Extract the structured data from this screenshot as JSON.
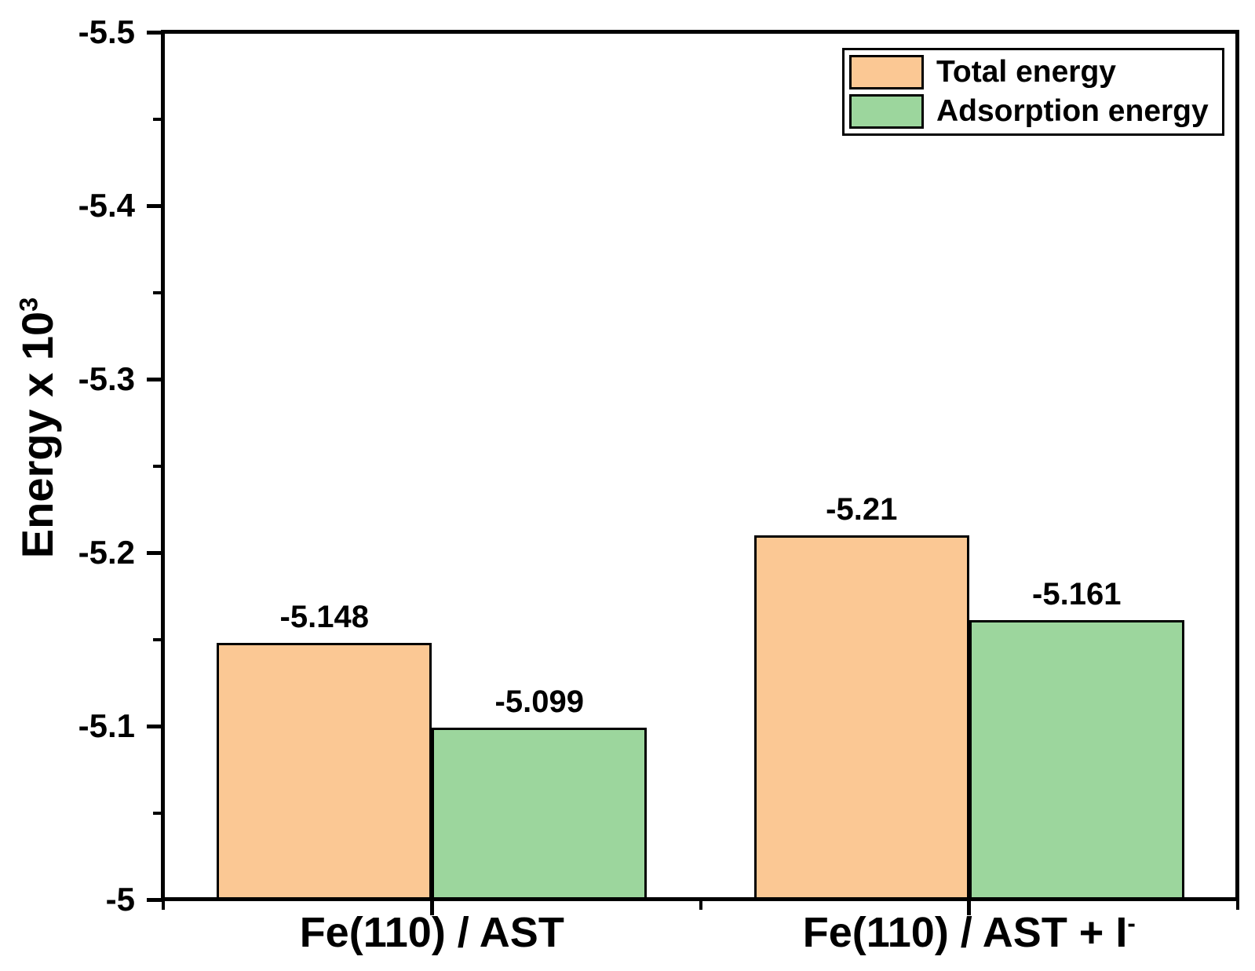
{
  "chart_data": {
    "type": "bar",
    "title": "",
    "xlabel": "",
    "ylabel": {
      "text": "Energy x 10",
      "sup": "3"
    },
    "yaxis": {
      "top_value": -5.5,
      "bottom_value": -5.0,
      "major_tick_labels": [
        "-5.5",
        "-5.4",
        "-5.3",
        "-5.2",
        "-5.1",
        "-5"
      ],
      "major_tick_values": [
        -5.5,
        -5.4,
        -5.3,
        -5.2,
        -5.1,
        -5.0
      ],
      "minor_tick_values": [
        -5.45,
        -5.35,
        -5.25,
        -5.15,
        -5.05
      ]
    },
    "categories": [
      {
        "text": "Fe(110) / AST",
        "sup": ""
      },
      {
        "text": "Fe(110) / AST + I",
        "sup": "-"
      }
    ],
    "series": [
      {
        "name": "Total energy",
        "color": "#FBC894",
        "values": [
          -5.148,
          -5.21
        ],
        "value_labels": [
          "-5.148",
          "-5.21"
        ]
      },
      {
        "name": "Adsorption energy",
        "color": "#9CD69D",
        "values": [
          -5.099,
          -5.161
        ],
        "value_labels": [
          "-5.099",
          "-5.161"
        ]
      }
    ],
    "baseline_value": -5.0,
    "grid": false,
    "legend": {
      "position": "top-right"
    },
    "colors": {
      "axis": "#000000",
      "bar_outline": "#000000",
      "background": "#FFFFFF",
      "text": "#000000"
    }
  }
}
